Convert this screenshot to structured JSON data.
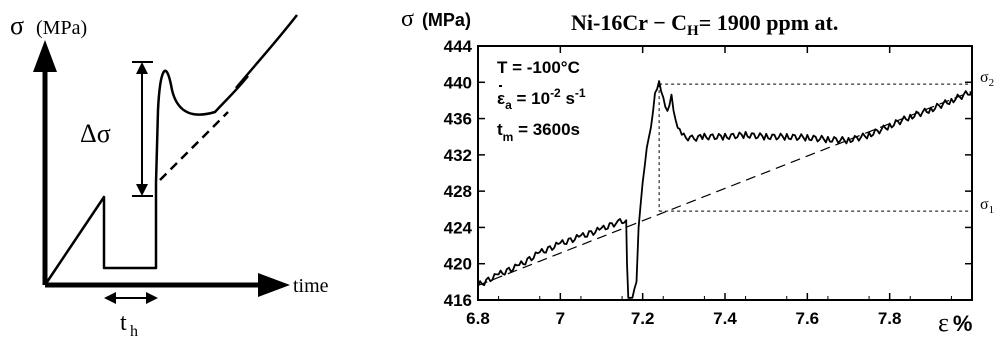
{
  "schematic": {
    "y_symbol": "σ",
    "y_unit": "(MPa)",
    "x_label": "time",
    "delta_label_greek": "Δσ",
    "hold_label_main": "t",
    "hold_label_sub": "h"
  },
  "chart_data": {
    "type": "line",
    "title_main": "Ni-16Cr − C",
    "title_sub": "H",
    "title_tail": "= 1900 ppm at.",
    "ylabel_symbol": "σ",
    "ylabel_unit": "(MPa)",
    "xlabel_symbol": "ε",
    "xlabel_unit": "%",
    "xlim": [
      6.8,
      8.0
    ],
    "ylim": [
      416,
      444
    ],
    "x_ticks": [
      6.8,
      7.0,
      7.2,
      7.4,
      7.6,
      7.8
    ],
    "x_tick_labels": [
      "6.8",
      "7",
      "7.2",
      "7.4",
      "7.6",
      "7.8"
    ],
    "y_ticks": [
      416,
      420,
      424,
      428,
      432,
      436,
      440,
      444
    ],
    "y_tick_labels": [
      "416",
      "420",
      "424",
      "428",
      "432",
      "436",
      "440",
      "444"
    ],
    "annotations": {
      "temp": "T = -100°C",
      "rate_prefix": "ε",
      "rate_sub": "a",
      "rate_value": " = 10",
      "rate_exp": "-2",
      "rate_unit": " s",
      "rate_unit_exp": "-1",
      "time_prefix": "t",
      "time_sub": "m",
      "time_value": " = 3600s"
    },
    "sigma_labels": [
      {
        "main": "σ",
        "sub": "2",
        "y": 439.8
      },
      {
        "main": "σ",
        "sub": "1",
        "y": 425.8
      }
    ],
    "dashed_drop_x": 7.24,
    "series": [
      {
        "values_x": [
          6.8,
          6.85,
          6.9,
          6.95,
          7.0,
          7.05,
          7.1,
          7.14,
          7.16,
          7.162,
          7.165,
          7.175,
          7.185,
          7.19,
          7.2,
          7.21,
          7.22,
          7.23,
          7.24,
          7.25,
          7.26,
          7.27,
          7.28,
          7.29,
          7.3,
          7.32,
          7.35,
          7.4,
          7.45,
          7.5,
          7.55,
          7.6,
          7.65,
          7.7,
          7.75,
          7.8,
          7.85,
          7.9,
          7.95,
          8.0
        ],
        "values_y": [
          417.6,
          418.8,
          419.8,
          421.2,
          422.2,
          423.0,
          423.8,
          424.6,
          424.8,
          420.0,
          416.0,
          416.0,
          418.0,
          424.0,
          429.0,
          432.5,
          435.0,
          438.5,
          439.8,
          438.0,
          436.5,
          438.3,
          435.5,
          434.5,
          434.0,
          433.8,
          434.0,
          434.0,
          434.2,
          434.0,
          434.0,
          433.9,
          433.7,
          433.6,
          434.2,
          435.2,
          436.2,
          437.0,
          438.0,
          439.0
        ]
      },
      {
        "name_hidden": true,
        "values_x": [
          6.8,
          8.0
        ],
        "values_y": [
          417.6,
          439.0
        ]
      }
    ]
  }
}
